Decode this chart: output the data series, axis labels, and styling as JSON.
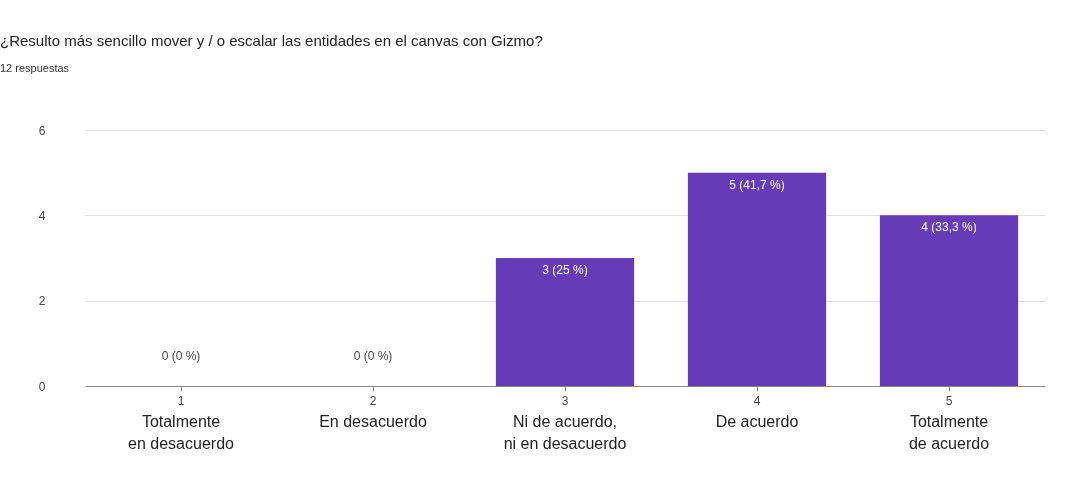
{
  "chart_data": {
    "type": "bar",
    "title": "¿Resulto más sencillo mover y / o escalar las entidades en el canvas con Gizmo?",
    "subtitle": "12 respuestas",
    "categories": [
      "1",
      "2",
      "3",
      "4",
      "5"
    ],
    "values": [
      0,
      0,
      3,
      5,
      4
    ],
    "value_labels": [
      "0 (0 %)",
      "0 (0 %)",
      "3 (25 %)",
      "5 (41,7 %)",
      "4 (33,3 %)"
    ],
    "color": "#673ab7",
    "ylim": [
      0,
      6
    ],
    "yticks": [
      0,
      2,
      4,
      6
    ],
    "grid": "y",
    "annotations": [
      "Totalmente en desacuerdo",
      "En desacuerdo",
      "Ni de acuerdo, ni en desacuerdo",
      "De acuerdo",
      "Totalmente de acuerdo"
    ]
  }
}
